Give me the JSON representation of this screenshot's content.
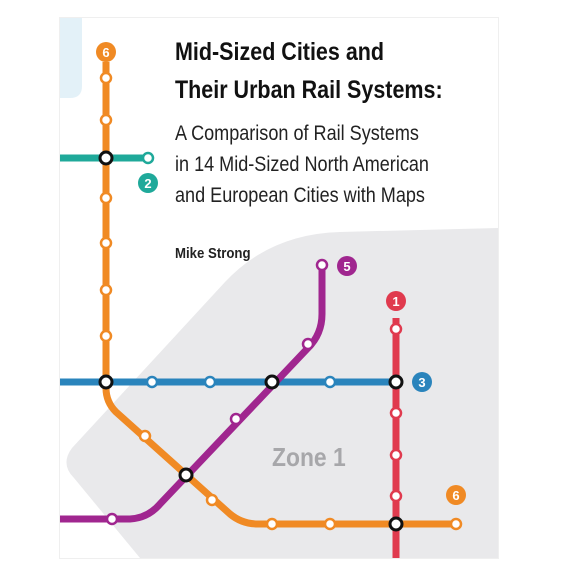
{
  "cover": {
    "title_line1": "Mid-Sized Cities and",
    "title_line2": "Their Urban Rail Systems:",
    "subtitle_line1": "A Comparison of Rail Systems",
    "subtitle_line2": "in 14 Mid-Sized North American",
    "subtitle_line3": "and European Cities with Maps",
    "author": "Mike Strong",
    "zone_label": "Zone 1"
  },
  "lines": [
    {
      "number": "6",
      "color": "#F08A24"
    },
    {
      "number": "2",
      "color": "#1FA99A"
    },
    {
      "number": "5",
      "color": "#A0268F"
    },
    {
      "number": "1",
      "color": "#E03A4E"
    },
    {
      "number": "3",
      "color": "#2A84BC"
    }
  ],
  "colors": {
    "zone_fill": "#E9E9EB",
    "corner_tab": "#E3F1F8",
    "background": "#FFFFFF"
  }
}
